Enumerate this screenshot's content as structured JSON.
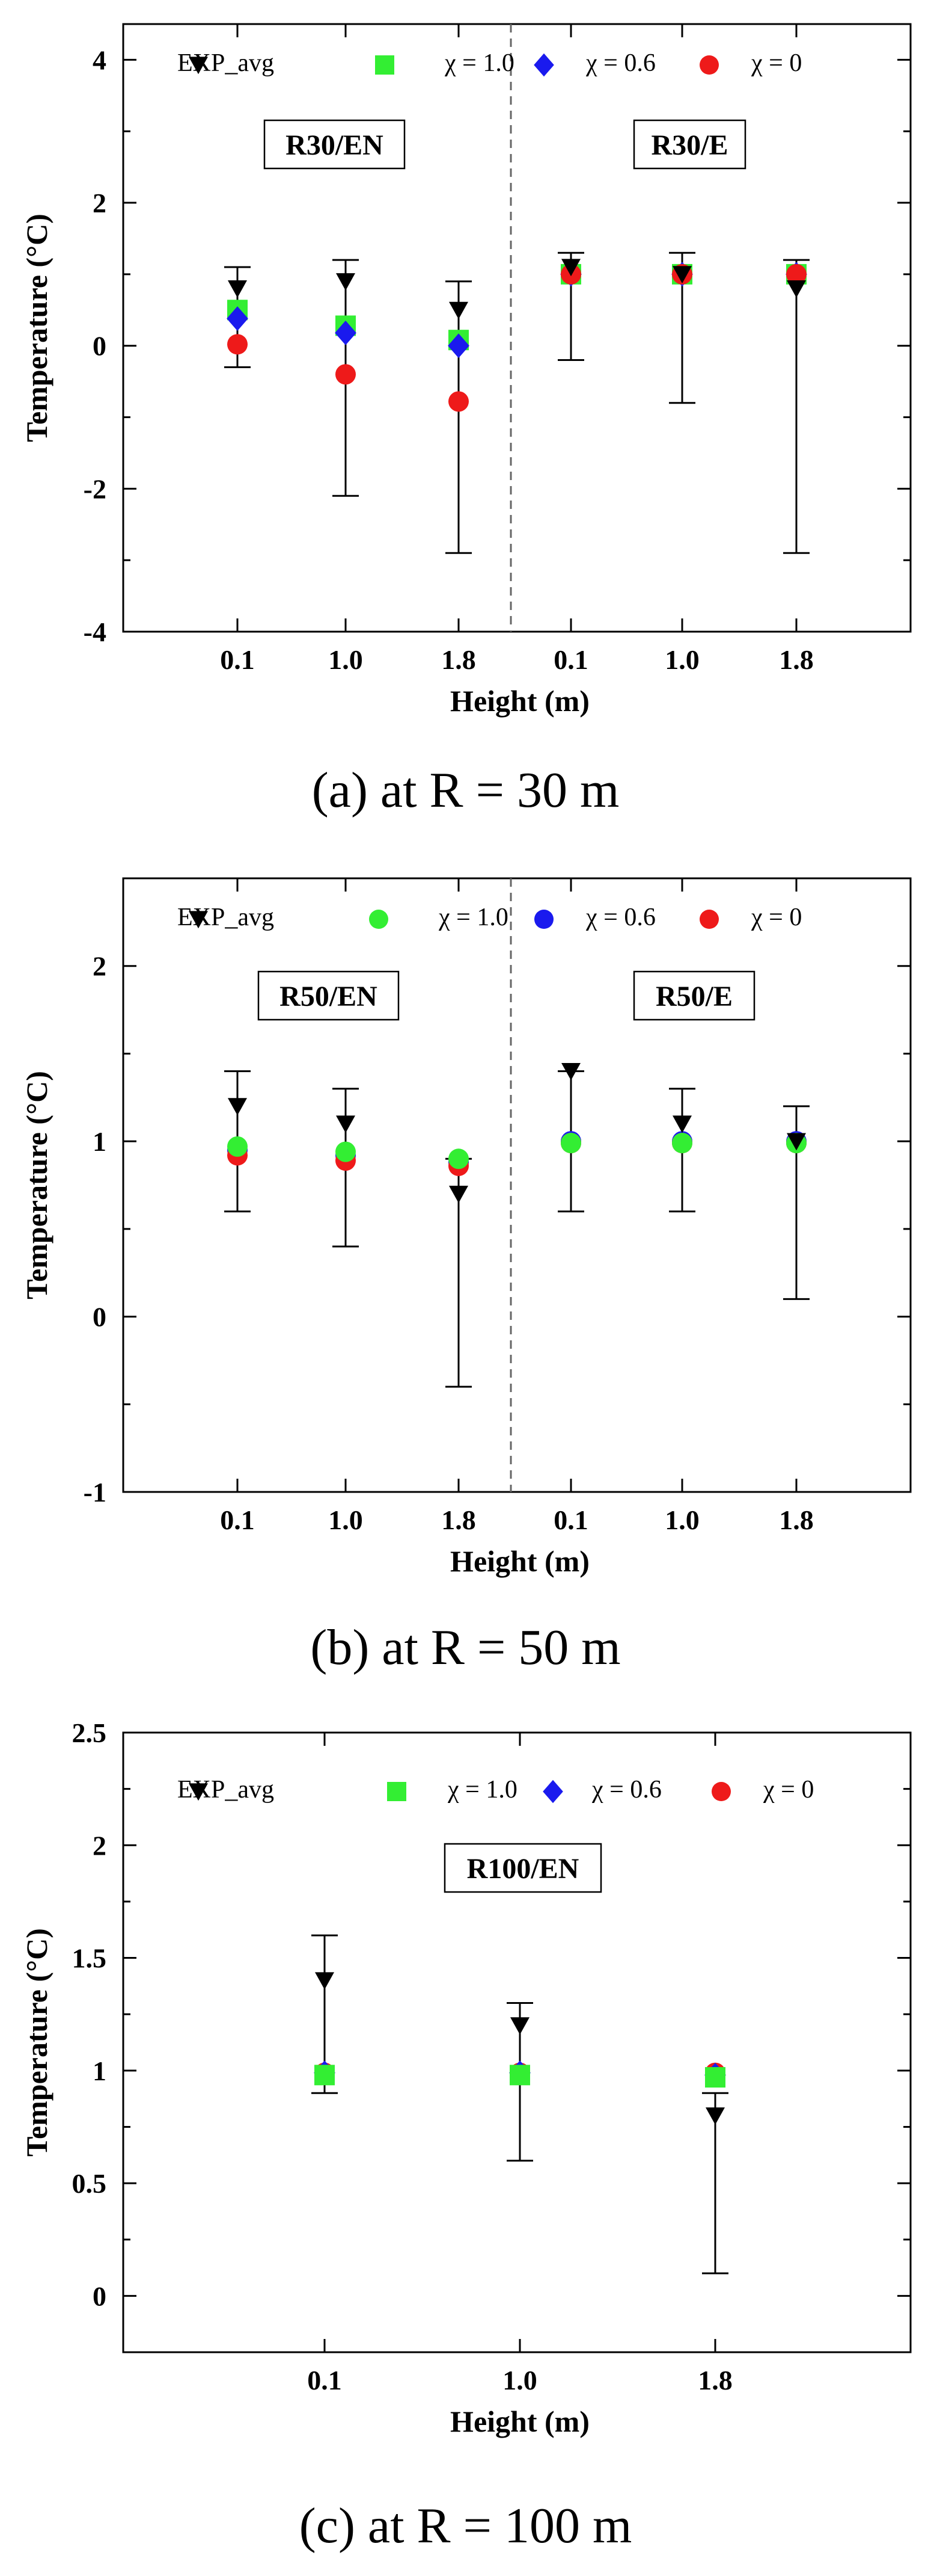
{
  "chart_data": [
    {
      "type": "scatter",
      "panel_id": "a",
      "caption": "(a) at R = 30 m",
      "xlabel": "Height (m)",
      "ylabel": "Temperature (°C)",
      "categories": [
        "0.1",
        "1.0",
        "1.8",
        "0.1",
        "1.0",
        "1.8"
      ],
      "group_labels": [
        "R30/EN",
        "R30/E"
      ],
      "group_divider_after": 2,
      "ylim": [
        -4,
        4.5
      ],
      "yticks": [
        -4,
        -2,
        0,
        2,
        4
      ],
      "ytick_labels": [
        "-4",
        "-2",
        "0",
        "2",
        "4"
      ],
      "legend": [
        "EXP_avg",
        "χ = 1.0",
        "χ = 0.6",
        "χ = 0"
      ],
      "series": [
        {
          "name": "EXP_avg",
          "marker": "triangle-down",
          "color": "#000000",
          "values": [
            0.8,
            0.9,
            0.5,
            1.1,
            1.0,
            0.8
          ],
          "error_high": [
            1.1,
            1.2,
            0.9,
            1.3,
            1.3,
            1.2
          ],
          "error_low": [
            -0.3,
            -2.1,
            -2.9,
            -0.2,
            -0.8,
            -2.9
          ]
        },
        {
          "name": "χ = 1.0",
          "marker": "square",
          "color": "#33ee33",
          "values": [
            0.5,
            0.28,
            0.08,
            1.0,
            1.0,
            1.0
          ]
        },
        {
          "name": "χ = 0.6",
          "marker": "diamond",
          "color": "#1a1aee",
          "values": [
            0.38,
            0.18,
            0.0,
            1.0,
            1.0,
            1.0
          ]
        },
        {
          "name": "χ = 0",
          "marker": "circle",
          "color": "#ee1a1a",
          "values": [
            0.02,
            -0.4,
            -0.78,
            1.0,
            1.0,
            1.0
          ]
        }
      ]
    },
    {
      "type": "scatter",
      "panel_id": "b",
      "caption": "(b) at R = 50 m",
      "xlabel": "Height (m)",
      "ylabel": "Temperature (°C)",
      "categories": [
        "0.1",
        "1.0",
        "1.8",
        "0.1",
        "1.0",
        "1.8"
      ],
      "group_labels": [
        "R50/EN",
        "R50/E"
      ],
      "group_divider_after": 2,
      "ylim": [
        -1,
        2.5
      ],
      "yticks": [
        -1,
        0,
        1,
        2
      ],
      "ytick_labels": [
        "-1",
        "0",
        "1",
        "2"
      ],
      "legend": [
        "EXP_avg",
        "χ = 1.0",
        "χ = 0.6",
        "χ = 0"
      ],
      "series": [
        {
          "name": "EXP_avg",
          "marker": "triangle-down",
          "color": "#000000",
          "values": [
            1.2,
            1.1,
            0.7,
            1.4,
            1.1,
            1.0
          ],
          "error_high": [
            1.4,
            1.3,
            0.9,
            1.4,
            1.3,
            1.2
          ],
          "error_low": [
            0.6,
            0.4,
            -0.4,
            0.6,
            0.6,
            0.1
          ]
        },
        {
          "name": "χ = 0.6",
          "marker": "circle",
          "color": "#1a1aee",
          "values": [
            0.95,
            0.92,
            0.88,
            1.0,
            1.0,
            1.0
          ]
        },
        {
          "name": "χ = 0",
          "marker": "circle",
          "color": "#ee1a1a",
          "values": [
            0.92,
            0.89,
            0.86,
            0.99,
            0.99,
            0.99
          ]
        },
        {
          "name": "χ = 1.0",
          "marker": "circle",
          "color": "#33ee33",
          "values": [
            0.97,
            0.94,
            0.9,
            0.99,
            0.99,
            0.99
          ]
        }
      ]
    },
    {
      "type": "scatter",
      "panel_id": "c",
      "caption": "(c) at R = 100 m",
      "xlabel": "Height (m)",
      "ylabel": "Temperature (°C)",
      "categories": [
        "0.1",
        "1.0",
        "1.8"
      ],
      "group_labels": [
        "R100/EN"
      ],
      "group_divider_after": null,
      "ylim": [
        -0.25,
        2.5
      ],
      "yticks": [
        0,
        0.5,
        1,
        1.5,
        2,
        2.5
      ],
      "ytick_labels": [
        "0",
        "0.5",
        "1",
        "1.5",
        "2",
        "2.5"
      ],
      "legend": [
        "EXP_avg",
        "χ = 1.0",
        "χ = 0.6",
        "χ = 0"
      ],
      "series": [
        {
          "name": "EXP_avg",
          "marker": "triangle-down",
          "color": "#000000",
          "values": [
            1.4,
            1.2,
            0.8
          ],
          "error_high": [
            1.6,
            1.3,
            0.9
          ],
          "error_low": [
            0.9,
            0.6,
            0.1
          ]
        },
        {
          "name": "χ = 0",
          "marker": "circle",
          "color": "#ee1a1a",
          "values": [
            0.99,
            0.99,
            0.99
          ]
        },
        {
          "name": "χ = 0.6",
          "marker": "diamond",
          "color": "#1a1aee",
          "values": [
            0.99,
            0.99,
            0.98
          ]
        },
        {
          "name": "χ = 1.0",
          "marker": "square",
          "color": "#33ee33",
          "values": [
            0.98,
            0.98,
            0.97
          ]
        }
      ]
    }
  ]
}
